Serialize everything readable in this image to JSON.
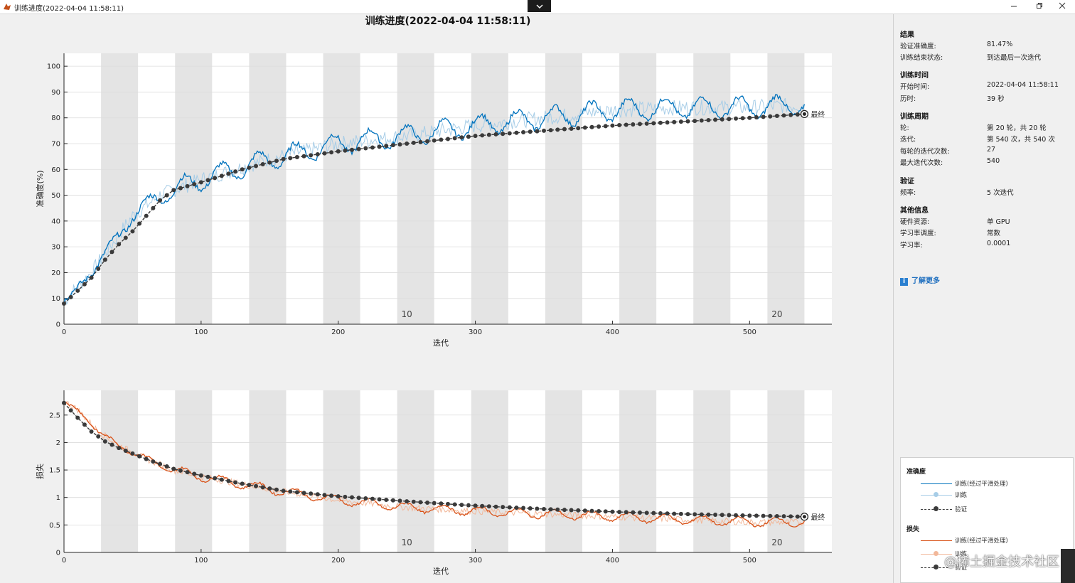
{
  "window": {
    "title": "训练进度(2022-04-04 11:58:11)",
    "collapse_icon": "chevron-down-icon",
    "controls": [
      "minimize-icon",
      "restore-icon",
      "close-icon"
    ]
  },
  "main_title": "训练进度(2022-04-04 11:58:11)",
  "info": {
    "results": {
      "heading": "结果",
      "rows": [
        {
          "key": "验证准确度:",
          "value": "81.47%"
        },
        {
          "key": "训练结束状态:",
          "value": "到达最后一次迭代"
        }
      ]
    },
    "time": {
      "heading": "训练时间",
      "rows": [
        {
          "key": "开始时间:",
          "value": "2022-04-04 11:58:11"
        },
        {
          "key": "历时:",
          "value": "39 秒"
        }
      ]
    },
    "cycle": {
      "heading": "训练周期",
      "rows": [
        {
          "key": "轮:",
          "value": "第 20 轮，共 20 轮"
        },
        {
          "key": "迭代:",
          "value": "第 540 次，共 540 次"
        },
        {
          "key": "每轮的迭代次数:",
          "value": "27"
        },
        {
          "key": "最大迭代次数:",
          "value": "540"
        }
      ]
    },
    "validation": {
      "heading": "验证",
      "rows": [
        {
          "key": "频率:",
          "value": "5 次迭代"
        }
      ]
    },
    "other": {
      "heading": "其他信息",
      "rows": [
        {
          "key": "硬件资源:",
          "value": "单 GPU"
        },
        {
          "key": "学习率调度:",
          "value": "常数"
        },
        {
          "key": "学习率:",
          "value": "0.0001"
        }
      ]
    },
    "learn_more": "了解更多"
  },
  "legend": {
    "accuracy_heading": "准确度",
    "loss_heading": "损失",
    "smoothed": "训练(经过平滑处理)",
    "train": "训练",
    "validation": "验证"
  },
  "watermark": "@稀土掘金技术社区",
  "colors": {
    "acc_smoothed": "#0072bd",
    "acc_raw": "#a7cde7",
    "loss_smoothed": "#d95319",
    "loss_raw": "#f2b89a",
    "validation": "#3a3a3a",
    "epoch_band": "#e4e4e4"
  },
  "chart_data": [
    {
      "type": "line",
      "xlabel": "迭代",
      "ylabel": "准确度(%)",
      "xlim": [
        0,
        560
      ],
      "ylim": [
        0,
        105
      ],
      "xticks": [
        0,
        100,
        200,
        300,
        400,
        500
      ],
      "yticks": [
        0,
        10,
        20,
        30,
        40,
        50,
        60,
        70,
        80,
        90,
        100
      ],
      "epoch_labels": [
        {
          "x": 250,
          "text": "10"
        },
        {
          "x": 520,
          "text": "20"
        }
      ],
      "final_label": "最终",
      "iterations_per_epoch": 27,
      "series": [
        {
          "name": "训练(经过平滑处理)",
          "keypoints": [
            [
              0,
              9
            ],
            [
              20,
              20
            ],
            [
              50,
              42
            ],
            [
              70,
              50
            ],
            [
              100,
              56
            ],
            [
              150,
              64
            ],
            [
              200,
              70
            ],
            [
              250,
              73
            ],
            [
              300,
              77
            ],
            [
              350,
              80
            ],
            [
              400,
              83
            ],
            [
              450,
              84
            ],
            [
              500,
              84
            ],
            [
              540,
              85
            ]
          ],
          "wave": 4
        },
        {
          "name": "训练",
          "keypoints": [
            [
              0,
              9
            ],
            [
              20,
              20
            ],
            [
              50,
              42
            ],
            [
              70,
              50
            ],
            [
              100,
              56
            ],
            [
              150,
              64
            ],
            [
              200,
              70
            ],
            [
              250,
              73
            ],
            [
              300,
              77
            ],
            [
              350,
              80
            ],
            [
              400,
              83
            ],
            [
              450,
              84
            ],
            [
              500,
              84
            ],
            [
              540,
              85
            ]
          ],
          "noise": 6
        },
        {
          "name": "验证",
          "keypoints": [
            [
              0,
              8
            ],
            [
              10,
              13
            ],
            [
              20,
              18
            ],
            [
              30,
              25
            ],
            [
              40,
              31
            ],
            [
              50,
              36
            ],
            [
              60,
              42
            ],
            [
              70,
              48
            ],
            [
              80,
              52
            ],
            [
              100,
              55
            ],
            [
              130,
              60
            ],
            [
              160,
              64
            ],
            [
              200,
              67
            ],
            [
              250,
              70
            ],
            [
              300,
              73
            ],
            [
              350,
              75
            ],
            [
              400,
              77
            ],
            [
              450,
              78.5
            ],
            [
              500,
              80
            ],
            [
              540,
              81.47
            ]
          ],
          "marker_every": 5
        }
      ]
    },
    {
      "type": "line",
      "xlabel": "迭代",
      "ylabel": "损失",
      "xlim": [
        0,
        560
      ],
      "ylim": [
        0,
        2.95
      ],
      "xticks": [
        0,
        100,
        200,
        300,
        400,
        500
      ],
      "yticks": [
        0,
        0.5,
        1,
        1.5,
        2,
        2.5
      ],
      "epoch_labels": [
        {
          "x": 250,
          "text": "10"
        },
        {
          "x": 520,
          "text": "20"
        }
      ],
      "final_label": "最终",
      "iterations_per_epoch": 27,
      "series": [
        {
          "name": "训练(经过平滑处理)",
          "keypoints": [
            [
              0,
              2.75
            ],
            [
              10,
              2.6
            ],
            [
              25,
              2.2
            ],
            [
              40,
              1.95
            ],
            [
              60,
              1.7
            ],
            [
              80,
              1.5
            ],
            [
              100,
              1.38
            ],
            [
              150,
              1.15
            ],
            [
              200,
              0.95
            ],
            [
              250,
              0.82
            ],
            [
              300,
              0.75
            ],
            [
              350,
              0.7
            ],
            [
              400,
              0.65
            ],
            [
              450,
              0.6
            ],
            [
              500,
              0.55
            ],
            [
              540,
              0.55
            ]
          ],
          "wave": 0.08
        },
        {
          "name": "训练",
          "keypoints": [
            [
              0,
              2.75
            ],
            [
              10,
              2.6
            ],
            [
              25,
              2.2
            ],
            [
              40,
              1.95
            ],
            [
              60,
              1.7
            ],
            [
              80,
              1.5
            ],
            [
              100,
              1.38
            ],
            [
              150,
              1.15
            ],
            [
              200,
              0.95
            ],
            [
              250,
              0.82
            ],
            [
              300,
              0.75
            ],
            [
              350,
              0.7
            ],
            [
              400,
              0.65
            ],
            [
              450,
              0.6
            ],
            [
              500,
              0.55
            ],
            [
              540,
              0.55
            ]
          ],
          "noise": 0.12
        },
        {
          "name": "验证",
          "keypoints": [
            [
              0,
              2.72
            ],
            [
              10,
              2.45
            ],
            [
              20,
              2.2
            ],
            [
              30,
              2.02
            ],
            [
              40,
              1.9
            ],
            [
              60,
              1.7
            ],
            [
              80,
              1.52
            ],
            [
              100,
              1.4
            ],
            [
              130,
              1.25
            ],
            [
              160,
              1.12
            ],
            [
              200,
              1.02
            ],
            [
              250,
              0.93
            ],
            [
              300,
              0.85
            ],
            [
              350,
              0.79
            ],
            [
              400,
              0.74
            ],
            [
              450,
              0.7
            ],
            [
              500,
              0.67
            ],
            [
              540,
              0.65
            ]
          ],
          "marker_every": 5
        }
      ]
    }
  ]
}
